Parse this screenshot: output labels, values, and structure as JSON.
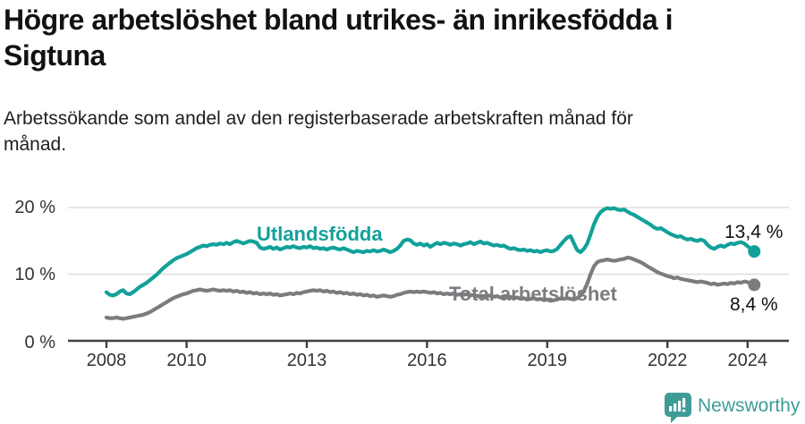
{
  "header": {
    "title_lines": [
      "Högre arbetslöshet bland utrikes- än inrikesfödda i",
      "Sigtuna"
    ],
    "subtitle_lines": [
      "Arbetssökande som andel av den registerbaserade arbetskraften månad för",
      "månad."
    ]
  },
  "branding": {
    "logo_text": "Newsworthy",
    "logo_icon": "newsworthy-bar-chart-bubble-icon",
    "logo_color": "#3e9c98"
  },
  "colors": {
    "utlandsfodda": "#12a19a",
    "total": "#7c7c80",
    "grid": "#dedede",
    "axis": "#3f3f3f",
    "tick_text": "#333333",
    "value_text": "#111111",
    "background": "#ffffff"
  },
  "chart_data": {
    "type": "line",
    "title": "Högre arbetslöshet bland utrikes- än inrikesfödda i Sigtuna",
    "subtitle": "Arbetssökande som andel av den registerbaserade arbetskraften månad för månad.",
    "x_unit": "month",
    "x_start": "2008-01",
    "x_end": "2024-03",
    "ylim": [
      0,
      21.5
    ],
    "grid": true,
    "legend_position": "inline-labels",
    "y_ticks": [
      {
        "value": 0,
        "label": "0 %"
      },
      {
        "value": 10,
        "label": "10 %"
      },
      {
        "value": 20,
        "label": "20 %"
      }
    ],
    "x_ticks": [
      {
        "year": 2008,
        "label": "2008"
      },
      {
        "year": 2010,
        "label": "2010"
      },
      {
        "year": 2013,
        "label": "2013"
      },
      {
        "year": 2016,
        "label": "2016"
      },
      {
        "year": 2019,
        "label": "2019"
      },
      {
        "year": 2022,
        "label": "2022"
      },
      {
        "year": 2024,
        "label": "2024"
      }
    ],
    "series": [
      {
        "name": "Utlandsfödda",
        "color": "#12a19a",
        "end_label": "13,4 %",
        "end_value": 13.4,
        "values": [
          7.3,
          6.9,
          6.8,
          7.0,
          7.4,
          7.6,
          7.1,
          7.0,
          7.3,
          7.7,
          8.1,
          8.4,
          8.7,
          9.1,
          9.5,
          9.9,
          10.4,
          10.9,
          11.3,
          11.7,
          12.1,
          12.4,
          12.6,
          12.8,
          13.0,
          13.3,
          13.6,
          13.9,
          14.1,
          14.3,
          14.2,
          14.4,
          14.5,
          14.4,
          14.6,
          14.5,
          14.7,
          14.5,
          14.8,
          15.0,
          14.8,
          14.6,
          14.8,
          15.0,
          14.9,
          14.7,
          14.0,
          13.8,
          13.9,
          14.1,
          13.8,
          14.0,
          13.7,
          13.9,
          14.1,
          14.0,
          14.2,
          14.0,
          13.9,
          14.1,
          14.0,
          14.2,
          13.9,
          14.0,
          13.8,
          13.9,
          13.7,
          13.9,
          14.0,
          13.8,
          13.7,
          13.9,
          13.7,
          13.5,
          13.3,
          13.5,
          13.4,
          13.3,
          13.5,
          13.4,
          13.6,
          13.4,
          13.5,
          13.7,
          13.5,
          13.3,
          13.5,
          13.8,
          14.3,
          15.0,
          15.2,
          15.1,
          14.6,
          14.4,
          14.6,
          14.3,
          14.5,
          14.1,
          14.4,
          14.7,
          14.5,
          14.7,
          14.6,
          14.4,
          14.6,
          14.5,
          14.3,
          14.5,
          14.6,
          14.8,
          14.5,
          14.7,
          14.9,
          14.6,
          14.7,
          14.5,
          14.3,
          14.4,
          14.2,
          14.3,
          14.0,
          13.8,
          13.9,
          13.7,
          13.6,
          13.7,
          13.5,
          13.6,
          13.4,
          13.5,
          13.3,
          13.5,
          13.6,
          13.4,
          13.5,
          13.8,
          14.4,
          15.0,
          15.5,
          15.7,
          14.6,
          13.6,
          13.3,
          13.8,
          14.6,
          16.0,
          17.5,
          18.6,
          19.3,
          19.7,
          19.9,
          19.8,
          19.9,
          19.7,
          19.6,
          19.7,
          19.4,
          19.1,
          18.9,
          18.6,
          18.3,
          18.0,
          17.7,
          17.4,
          17.0,
          16.8,
          16.9,
          16.6,
          16.3,
          16.0,
          15.8,
          15.6,
          15.7,
          15.4,
          15.2,
          15.3,
          15.1,
          15.0,
          15.2,
          15.0,
          14.4,
          14.0,
          13.8,
          14.1,
          14.3,
          14.1,
          14.4,
          14.6,
          14.5,
          14.7,
          14.8,
          14.6,
          14.2,
          13.8,
          13.4
        ]
      },
      {
        "name": "Total arbetslöshet",
        "color": "#7c7c80",
        "end_label": "8,4 %",
        "end_value": 8.4,
        "values": [
          3.5,
          3.4,
          3.4,
          3.5,
          3.4,
          3.3,
          3.4,
          3.5,
          3.6,
          3.7,
          3.8,
          3.9,
          4.1,
          4.3,
          4.6,
          4.9,
          5.2,
          5.5,
          5.8,
          6.1,
          6.4,
          6.6,
          6.8,
          7.0,
          7.1,
          7.3,
          7.5,
          7.6,
          7.7,
          7.6,
          7.5,
          7.6,
          7.7,
          7.6,
          7.5,
          7.6,
          7.5,
          7.6,
          7.4,
          7.5,
          7.3,
          7.4,
          7.2,
          7.3,
          7.1,
          7.2,
          7.0,
          7.1,
          7.0,
          7.1,
          6.9,
          7.0,
          6.8,
          6.9,
          7.0,
          7.1,
          7.0,
          7.2,
          7.1,
          7.3,
          7.4,
          7.5,
          7.6,
          7.5,
          7.6,
          7.4,
          7.5,
          7.3,
          7.4,
          7.2,
          7.3,
          7.1,
          7.2,
          7.0,
          7.1,
          6.9,
          7.0,
          6.8,
          6.9,
          6.7,
          6.8,
          6.6,
          6.7,
          6.8,
          6.7,
          6.6,
          6.7,
          6.9,
          7.0,
          7.2,
          7.3,
          7.4,
          7.3,
          7.4,
          7.3,
          7.4,
          7.3,
          7.2,
          7.3,
          7.1,
          7.2,
          7.0,
          7.1,
          7.0,
          7.1,
          6.9,
          7.0,
          6.9,
          7.0,
          6.8,
          6.9,
          6.7,
          6.8,
          6.6,
          6.7,
          6.8,
          6.6,
          6.7,
          6.5,
          6.6,
          6.5,
          6.6,
          6.4,
          6.5,
          6.3,
          6.4,
          6.2,
          6.3,
          6.4,
          6.2,
          6.3,
          6.1,
          6.2,
          6.0,
          6.1,
          6.2,
          6.4,
          6.3,
          6.4,
          6.3,
          6.2,
          6.4,
          6.8,
          7.5,
          8.6,
          10.0,
          11.2,
          11.8,
          12.0,
          12.1,
          12.2,
          12.1,
          12.0,
          12.1,
          12.2,
          12.3,
          12.5,
          12.4,
          12.2,
          12.0,
          11.8,
          11.5,
          11.2,
          10.9,
          10.6,
          10.3,
          10.1,
          9.9,
          9.7,
          9.6,
          9.4,
          9.5,
          9.3,
          9.2,
          9.1,
          9.0,
          8.9,
          8.8,
          8.9,
          8.8,
          8.7,
          8.5,
          8.6,
          8.4,
          8.5,
          8.6,
          8.5,
          8.7,
          8.6,
          8.8,
          8.7,
          8.9,
          8.8,
          8.6,
          8.4
        ]
      }
    ]
  }
}
